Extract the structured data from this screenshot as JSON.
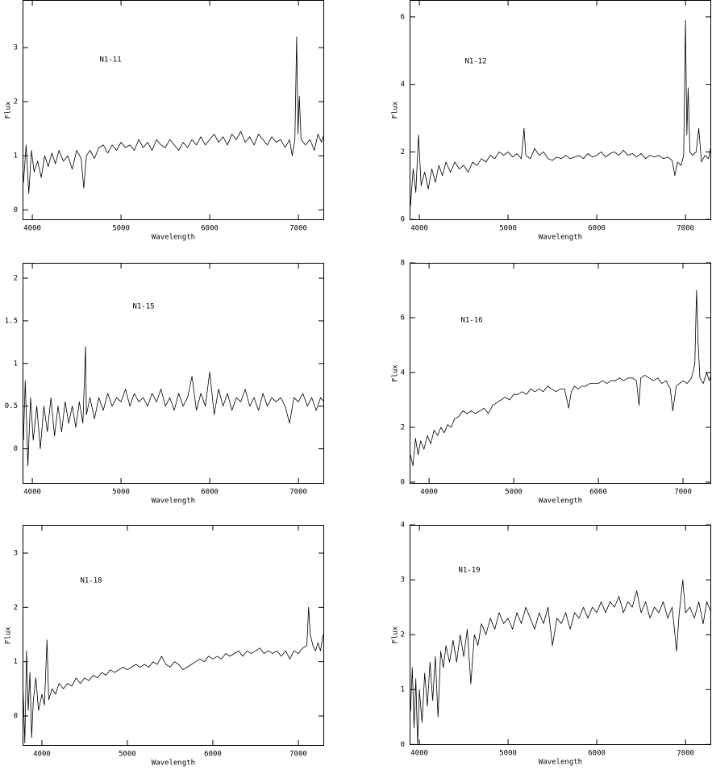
{
  "chart_data": [
    {
      "type": "line",
      "annotation": "N1-11",
      "x_label": "Wavelength",
      "y_label": "Flux",
      "color": "#000000",
      "xlim": [
        3890,
        7290
      ],
      "ylim": [
        -0.19,
        3.88
      ],
      "xticks": [
        4000,
        5000,
        6000,
        7000
      ],
      "yticks": [
        0,
        1,
        2,
        3
      ],
      "x": [
        3900,
        3930,
        3960,
        3990,
        4020,
        4060,
        4100,
        4140,
        4180,
        4220,
        4260,
        4300,
        4350,
        4400,
        4450,
        4500,
        4550,
        4580,
        4610,
        4650,
        4700,
        4750,
        4800,
        4850,
        4900,
        4950,
        5000,
        5050,
        5100,
        5150,
        5200,
        5250,
        5300,
        5350,
        5400,
        5450,
        5500,
        5550,
        5600,
        5650,
        5700,
        5750,
        5800,
        5850,
        5900,
        5950,
        6000,
        6050,
        6100,
        6150,
        6200,
        6250,
        6300,
        6350,
        6400,
        6450,
        6500,
        6550,
        6600,
        6650,
        6700,
        6750,
        6800,
        6850,
        6900,
        6930,
        6960,
        6980,
        6995,
        7010,
        7030,
        7080,
        7130,
        7180,
        7220,
        7260,
        7290
      ],
      "values": [
        0.5,
        1.2,
        0.3,
        1.1,
        0.7,
        0.9,
        0.6,
        1.0,
        0.8,
        1.05,
        0.85,
        1.1,
        0.9,
        1.0,
        0.75,
        1.1,
        0.95,
        0.4,
        1.0,
        1.1,
        0.95,
        1.15,
        1.2,
        1.05,
        1.2,
        1.1,
        1.25,
        1.15,
        1.2,
        1.1,
        1.3,
        1.15,
        1.25,
        1.1,
        1.3,
        1.2,
        1.15,
        1.3,
        1.2,
        1.1,
        1.25,
        1.15,
        1.3,
        1.2,
        1.35,
        1.2,
        1.3,
        1.4,
        1.25,
        1.35,
        1.2,
        1.4,
        1.3,
        1.45,
        1.25,
        1.35,
        1.2,
        1.4,
        1.3,
        1.2,
        1.35,
        1.25,
        1.3,
        1.15,
        1.3,
        1.0,
        1.3,
        3.2,
        1.4,
        2.1,
        1.3,
        1.2,
        1.3,
        1.1,
        1.4,
        1.25,
        1.4
      ]
    },
    {
      "type": "line",
      "annotation": "N1-12",
      "x_label": "Wavelength",
      "y_label": "Flux",
      "color": "#000000",
      "xlim": [
        3890,
        7290
      ],
      "ylim": [
        -0.02,
        6.5
      ],
      "xticks": [
        4000,
        5000,
        6000,
        7000
      ],
      "yticks": [
        0,
        2,
        4,
        6
      ],
      "x": [
        3900,
        3930,
        3960,
        3990,
        4020,
        4060,
        4100,
        4140,
        4180,
        4220,
        4260,
        4300,
        4350,
        4400,
        4450,
        4500,
        4550,
        4600,
        4650,
        4700,
        4750,
        4800,
        4850,
        4900,
        4950,
        5000,
        5050,
        5100,
        5150,
        5180,
        5200,
        5250,
        5300,
        5350,
        5400,
        5450,
        5500,
        5550,
        5600,
        5650,
        5700,
        5750,
        5800,
        5850,
        5900,
        5950,
        6000,
        6050,
        6100,
        6150,
        6200,
        6250,
        6300,
        6350,
        6400,
        6450,
        6500,
        6550,
        6600,
        6650,
        6700,
        6750,
        6800,
        6850,
        6880,
        6910,
        6950,
        6980,
        7000,
        7015,
        7030,
        7050,
        7080,
        7120,
        7150,
        7180,
        7220,
        7260,
        7290
      ],
      "values": [
        0.4,
        1.5,
        0.8,
        2.5,
        1.0,
        1.4,
        0.9,
        1.5,
        1.1,
        1.6,
        1.3,
        1.7,
        1.4,
        1.7,
        1.5,
        1.6,
        1.4,
        1.7,
        1.6,
        1.8,
        1.7,
        1.9,
        1.8,
        2.0,
        1.9,
        2.0,
        1.85,
        1.95,
        1.8,
        2.7,
        1.9,
        1.8,
        2.1,
        1.9,
        2.0,
        1.8,
        1.75,
        1.85,
        1.8,
        1.9,
        1.8,
        1.85,
        1.9,
        1.8,
        1.95,
        1.85,
        1.9,
        2.0,
        1.85,
        1.95,
        2.0,
        1.9,
        2.05,
        1.9,
        1.95,
        1.85,
        1.95,
        1.8,
        1.9,
        1.85,
        1.9,
        1.8,
        1.85,
        1.75,
        1.3,
        1.7,
        1.6,
        1.9,
        5.9,
        2.5,
        3.9,
        2.0,
        1.9,
        2.0,
        2.7,
        1.7,
        1.9,
        1.8,
        2.2
      ]
    },
    {
      "type": "line",
      "annotation": "N1-15",
      "x_label": "Wavelength",
      "color": "#000000",
      "xlim": [
        3890,
        7290
      ],
      "ylim": [
        -0.41,
        2.18
      ],
      "xticks": [
        4000,
        5000,
        6000,
        7000
      ],
      "yticks": [
        0,
        0.5,
        1,
        1.5,
        2
      ],
      "x": [
        3900,
        3920,
        3950,
        3980,
        4010,
        4050,
        4090,
        4130,
        4170,
        4210,
        4250,
        4290,
        4330,
        4370,
        4410,
        4450,
        4490,
        4530,
        4570,
        4600,
        4610,
        4650,
        4700,
        4750,
        4800,
        4850,
        4900,
        4950,
        5000,
        5050,
        5100,
        5150,
        5200,
        5250,
        5300,
        5350,
        5400,
        5450,
        5500,
        5550,
        5600,
        5650,
        5700,
        5750,
        5800,
        5850,
        5900,
        5950,
        6000,
        6050,
        6100,
        6150,
        6200,
        6250,
        6300,
        6350,
        6400,
        6450,
        6500,
        6550,
        6600,
        6650,
        6700,
        6750,
        6800,
        6850,
        6900,
        6950,
        7000,
        7050,
        7100,
        7150,
        7200,
        7250,
        7290
      ],
      "values": [
        0.1,
        0.8,
        -0.2,
        0.6,
        0.1,
        0.5,
        0.0,
        0.5,
        0.2,
        0.6,
        0.15,
        0.5,
        0.2,
        0.55,
        0.3,
        0.5,
        0.25,
        0.55,
        0.3,
        1.2,
        0.4,
        0.6,
        0.35,
        0.6,
        0.45,
        0.65,
        0.5,
        0.6,
        0.55,
        0.7,
        0.5,
        0.65,
        0.55,
        0.6,
        0.5,
        0.65,
        0.55,
        0.7,
        0.5,
        0.6,
        0.45,
        0.65,
        0.5,
        0.6,
        0.85,
        0.45,
        0.65,
        0.5,
        0.9,
        0.4,
        0.7,
        0.5,
        0.65,
        0.45,
        0.6,
        0.55,
        0.7,
        0.5,
        0.6,
        0.45,
        0.65,
        0.5,
        0.6,
        0.55,
        0.6,
        0.5,
        0.3,
        0.6,
        0.55,
        0.65,
        0.5,
        0.6,
        0.45,
        0.6,
        0.55
      ]
    },
    {
      "type": "line",
      "annotation": "N1-16",
      "x_label": "Wavelength",
      "y_label": "Flux",
      "color": "#000000",
      "xlim": [
        3770,
        7333
      ],
      "ylim": [
        -0.06,
        8
      ],
      "xticks": [
        4000,
        5000,
        6000,
        7000
      ],
      "yticks": [
        0,
        2,
        4,
        6,
        8
      ],
      "x": [
        3780,
        3810,
        3840,
        3870,
        3900,
        3940,
        3980,
        4020,
        4060,
        4100,
        4140,
        4180,
        4220,
        4260,
        4300,
        4350,
        4400,
        4450,
        4500,
        4550,
        4600,
        4650,
        4700,
        4750,
        4800,
        4850,
        4900,
        4950,
        5000,
        5050,
        5100,
        5150,
        5200,
        5250,
        5300,
        5350,
        5400,
        5450,
        5500,
        5550,
        5600,
        5650,
        5680,
        5720,
        5760,
        5800,
        5850,
        5900,
        5950,
        6000,
        6050,
        6100,
        6150,
        6200,
        6250,
        6300,
        6350,
        6400,
        6450,
        6480,
        6500,
        6550,
        6600,
        6650,
        6700,
        6750,
        6800,
        6850,
        6880,
        6920,
        6960,
        7000,
        7050,
        7100,
        7140,
        7160,
        7180,
        7200,
        7240,
        7280,
        7310,
        7330
      ],
      "values": [
        1.0,
        0.6,
        1.6,
        1.0,
        1.5,
        1.2,
        1.7,
        1.4,
        1.9,
        1.7,
        2.0,
        1.8,
        2.1,
        2.0,
        2.3,
        2.4,
        2.6,
        2.5,
        2.6,
        2.5,
        2.6,
        2.7,
        2.5,
        2.8,
        2.9,
        3.0,
        3.1,
        3.0,
        3.2,
        3.2,
        3.3,
        3.2,
        3.4,
        3.3,
        3.4,
        3.3,
        3.5,
        3.4,
        3.3,
        3.4,
        3.4,
        2.7,
        3.3,
        3.5,
        3.4,
        3.5,
        3.5,
        3.6,
        3.6,
        3.6,
        3.7,
        3.6,
        3.7,
        3.7,
        3.8,
        3.7,
        3.8,
        3.8,
        3.7,
        2.8,
        3.8,
        3.9,
        3.8,
        3.7,
        3.8,
        3.6,
        3.7,
        3.4,
        2.6,
        3.5,
        3.6,
        3.7,
        3.6,
        3.8,
        4.3,
        7.0,
        5.0,
        3.8,
        3.6,
        4.0,
        3.7,
        3.9
      ]
    },
    {
      "type": "line",
      "annotation": "N1-18",
      "x_label": "Wavelength",
      "y_label": "Flux",
      "color": "#000000",
      "xlim": [
        3774,
        7302
      ],
      "ylim": [
        -0.55,
        3.52
      ],
      "xticks": [
        4000,
        5000,
        6000,
        7000
      ],
      "yticks": [
        0,
        1,
        2,
        3
      ],
      "x": [
        3780,
        3800,
        3820,
        3840,
        3860,
        3880,
        3900,
        3930,
        3960,
        4000,
        4030,
        4060,
        4080,
        4120,
        4160,
        4200,
        4250,
        4300,
        4350,
        4400,
        4450,
        4500,
        4550,
        4600,
        4650,
        4700,
        4750,
        4800,
        4850,
        4900,
        4950,
        5000,
        5050,
        5100,
        5150,
        5200,
        5250,
        5300,
        5350,
        5400,
        5450,
        5500,
        5550,
        5600,
        5650,
        5700,
        5750,
        5800,
        5850,
        5900,
        5950,
        6000,
        6050,
        6100,
        6150,
        6200,
        6250,
        6300,
        6350,
        6400,
        6450,
        6500,
        6550,
        6600,
        6650,
        6700,
        6750,
        6800,
        6850,
        6900,
        6950,
        7000,
        7050,
        7100,
        7120,
        7140,
        7170,
        7200,
        7230,
        7260,
        7290
      ],
      "values": [
        0.5,
        -0.5,
        1.2,
        0.1,
        0.8,
        -0.4,
        0.3,
        0.7,
        0.1,
        0.4,
        0.2,
        1.4,
        0.3,
        0.5,
        0.4,
        0.6,
        0.5,
        0.6,
        0.55,
        0.7,
        0.6,
        0.7,
        0.65,
        0.75,
        0.7,
        0.8,
        0.75,
        0.85,
        0.8,
        0.85,
        0.9,
        0.85,
        0.9,
        0.95,
        0.9,
        0.95,
        0.9,
        1.0,
        0.95,
        1.1,
        0.95,
        0.9,
        1.0,
        0.95,
        0.85,
        0.9,
        0.95,
        1.0,
        1.05,
        1.0,
        1.1,
        1.05,
        1.1,
        1.05,
        1.15,
        1.1,
        1.15,
        1.2,
        1.1,
        1.2,
        1.15,
        1.2,
        1.25,
        1.15,
        1.2,
        1.15,
        1.2,
        1.1,
        1.2,
        1.05,
        1.2,
        1.15,
        1.25,
        1.3,
        2.0,
        1.5,
        1.3,
        1.2,
        1.35,
        1.2,
        1.5
      ]
    },
    {
      "type": "line",
      "annotation": "N1-19",
      "x_label": "Wavelength",
      "y_label": "Flux",
      "color": "#000000",
      "xlim": [
        3890,
        7290
      ],
      "ylim": [
        -0.01,
        4
      ],
      "xticks": [
        4000,
        5000,
        6000,
        7000
      ],
      "yticks": [
        0,
        1,
        2,
        3,
        4
      ],
      "x": [
        3900,
        3920,
        3940,
        3960,
        3980,
        4000,
        4030,
        4060,
        4090,
        4120,
        4150,
        4180,
        4210,
        4240,
        4270,
        4300,
        4340,
        4380,
        4420,
        4460,
        4500,
        4540,
        4580,
        4620,
        4660,
        4700,
        4750,
        4800,
        4850,
        4900,
        4950,
        5000,
        5050,
        5100,
        5150,
        5200,
        5250,
        5300,
        5350,
        5400,
        5450,
        5500,
        5550,
        5600,
        5650,
        5700,
        5750,
        5800,
        5850,
        5900,
        5950,
        6000,
        6050,
        6100,
        6150,
        6200,
        6250,
        6300,
        6350,
        6400,
        6450,
        6500,
        6550,
        6600,
        6650,
        6700,
        6750,
        6800,
        6850,
        6900,
        6930,
        6970,
        7000,
        7050,
        7100,
        7150,
        7200,
        7240,
        7290
      ],
      "values": [
        0.6,
        1.4,
        0.3,
        1.2,
        0.0,
        1.0,
        0.4,
        1.3,
        0.7,
        1.5,
        0.8,
        1.6,
        0.5,
        1.7,
        1.4,
        1.8,
        1.5,
        1.9,
        1.5,
        2.0,
        1.6,
        2.1,
        1.1,
        2.0,
        1.8,
        2.2,
        2.0,
        2.3,
        2.1,
        2.4,
        2.2,
        2.3,
        2.1,
        2.4,
        2.2,
        2.5,
        2.3,
        2.1,
        2.4,
        2.2,
        2.5,
        1.8,
        2.3,
        2.2,
        2.4,
        2.1,
        2.4,
        2.3,
        2.5,
        2.3,
        2.5,
        2.4,
        2.6,
        2.4,
        2.6,
        2.5,
        2.7,
        2.4,
        2.6,
        2.5,
        2.8,
        2.4,
        2.6,
        2.3,
        2.5,
        2.4,
        2.6,
        2.3,
        2.5,
        1.7,
        2.4,
        3.0,
        2.4,
        2.5,
        2.3,
        2.6,
        2.2,
        2.6,
        2.4
      ]
    }
  ]
}
